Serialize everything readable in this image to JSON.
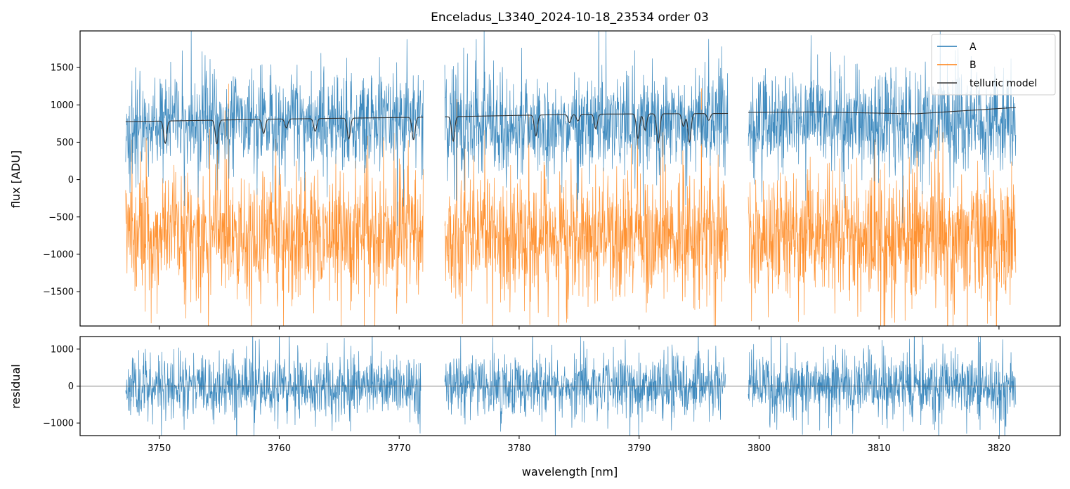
{
  "chart_data": [
    {
      "type": "line",
      "title": "Enceladus_L3340_2024-10-18_23534  order 03",
      "xlabel": "",
      "ylabel": "flux [ADU]",
      "xlim": [
        3743.4,
        3825.1
      ],
      "ylim": [
        -1960,
        1990
      ],
      "yticks": [
        -1500,
        -1000,
        -500,
        0,
        500,
        1000,
        1500
      ],
      "yticklabels": [
        "−1500",
        "−1000",
        "−500",
        "0",
        "500",
        "1000",
        "1500"
      ],
      "xticks": [
        3750,
        3760,
        3770,
        3780,
        3790,
        3800,
        3810,
        3820
      ],
      "segments": [
        [
          3747.2,
          3772.0
        ],
        [
          3773.8,
          3797.4
        ],
        [
          3799.1,
          3821.4
        ]
      ],
      "legend": {
        "position": "top-right",
        "entries": [
          "A",
          "B",
          "telluric model"
        ]
      },
      "series": [
        {
          "name": "A",
          "color": "#1f77b4",
          "center": 750,
          "noise_std": 320,
          "points": 900
        },
        {
          "name": "B",
          "color": "#ff7f0e",
          "center": -750,
          "noise_std": 420,
          "points": 900
        },
        {
          "name": "telluric model",
          "color": "#333333",
          "continuum_segments": [
            {
              "x": [
                3747.2,
                3760,
                3772.0
              ],
              "y": [
                775,
                810,
                835
              ]
            },
            {
              "x": [
                3773.8,
                3785,
                3797.4
              ],
              "y": [
                840,
                875,
                885
              ]
            },
            {
              "x": [
                3799.1,
                3805,
                3813,
                3821.4
              ],
              "y": [
                900,
                905,
                880,
                965
              ]
            }
          ],
          "absorption_lines": [
            {
              "x": 3750.5,
              "depth": 300
            },
            {
              "x": 3754.8,
              "depth": 320
            },
            {
              "x": 3758.7,
              "depth": 190
            },
            {
              "x": 3760.6,
              "depth": 120
            },
            {
              "x": 3763.0,
              "depth": 170
            },
            {
              "x": 3765.8,
              "depth": 280
            },
            {
              "x": 3771.2,
              "depth": 300
            },
            {
              "x": 3774.5,
              "depth": 330
            },
            {
              "x": 3781.4,
              "depth": 280
            },
            {
              "x": 3784.2,
              "depth": 110
            },
            {
              "x": 3784.9,
              "depth": 90
            },
            {
              "x": 3786.4,
              "depth": 200
            },
            {
              "x": 3789.9,
              "depth": 330
            },
            {
              "x": 3790.5,
              "depth": 220
            },
            {
              "x": 3791.6,
              "depth": 390
            },
            {
              "x": 3793.7,
              "depth": 170
            },
            {
              "x": 3794.2,
              "depth": 380
            },
            {
              "x": 3795.8,
              "depth": 90
            }
          ]
        }
      ]
    },
    {
      "type": "line",
      "title": "",
      "xlabel": "wavelength [nm]",
      "ylabel": "residual",
      "xlim": [
        3743.4,
        3825.1
      ],
      "ylim": [
        -1340,
        1340
      ],
      "yticks": [
        -1000,
        0,
        1000
      ],
      "yticklabels": [
        "−1000",
        "0",
        "1000"
      ],
      "xticks": [
        3750,
        3760,
        3770,
        3780,
        3790,
        3800,
        3810,
        3820
      ],
      "xticklabels": [
        "3750",
        "3760",
        "3770",
        "3780",
        "3790",
        "3800",
        "3810",
        "3820"
      ],
      "segments": [
        [
          3747.2,
          3771.8
        ],
        [
          3773.8,
          3797.2
        ],
        [
          3799.1,
          3821.4
        ]
      ],
      "series": [
        {
          "name": "residual",
          "color": "#1f77b4",
          "center": 0,
          "noise_std": 420,
          "points": 900
        }
      ],
      "zero_line": 0
    }
  ]
}
